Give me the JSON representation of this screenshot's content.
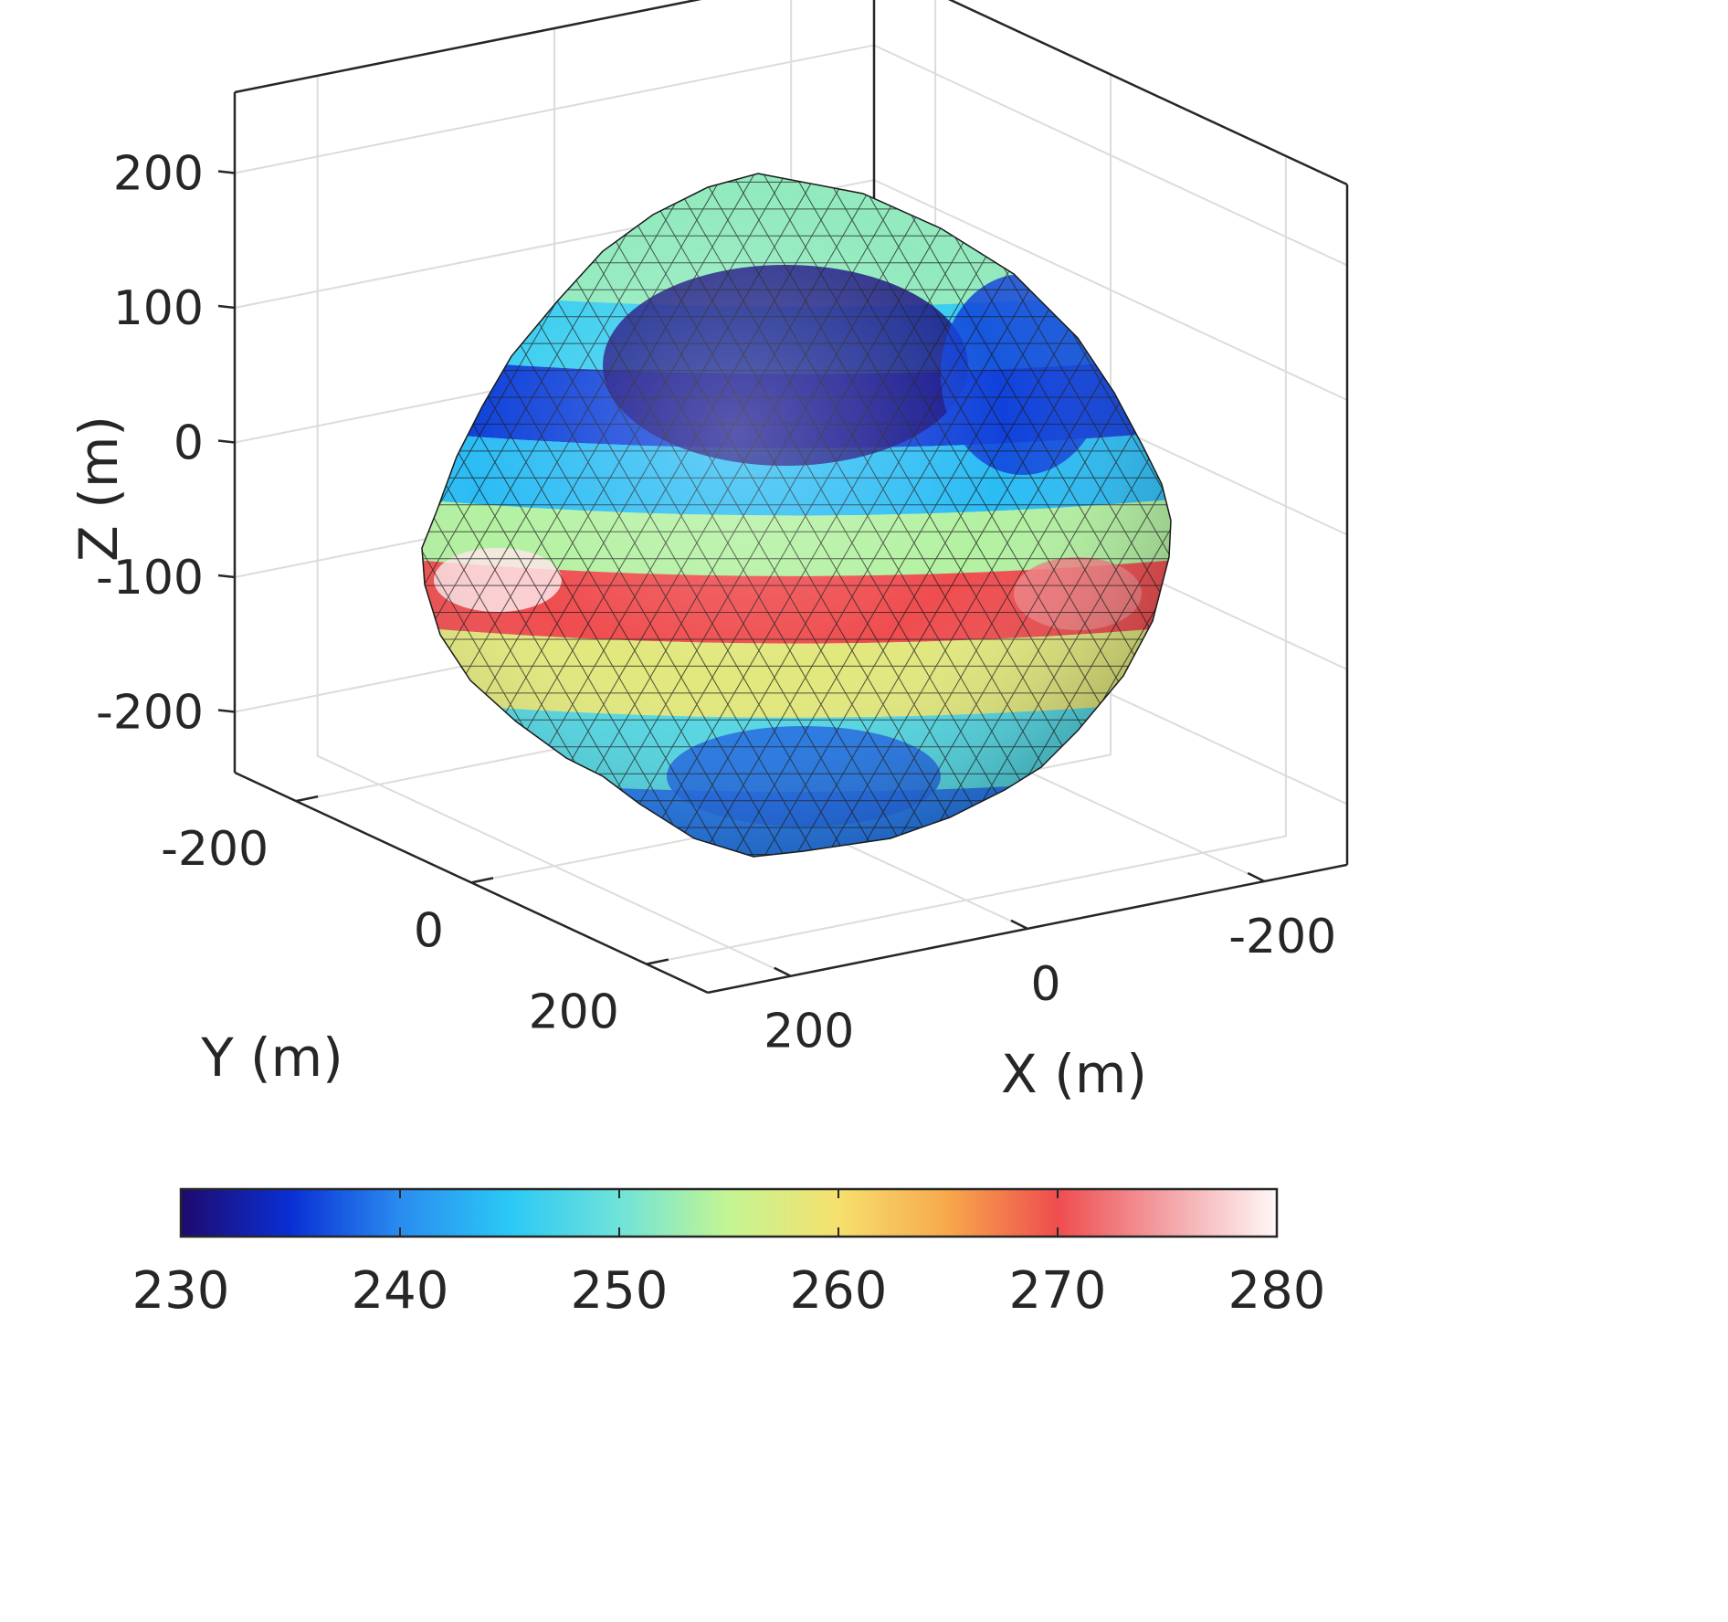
{
  "chart_data": {
    "type": "3d-surface",
    "title": "",
    "xlabel": "X (m)",
    "ylabel": "Y (m)",
    "zlabel": "Z (m)",
    "xticks": [
      {
        "value": -200,
        "label": "-200"
      },
      {
        "value": 0,
        "label": "0"
      },
      {
        "value": 200,
        "label": "200"
      }
    ],
    "yticks": [
      {
        "value": -200,
        "label": "-200"
      },
      {
        "value": 0,
        "label": "0"
      },
      {
        "value": 200,
        "label": "200"
      }
    ],
    "zticks": [
      {
        "value": -200,
        "label": "-200"
      },
      {
        "value": -100,
        "label": "-100"
      },
      {
        "value": 0,
        "label": "0"
      },
      {
        "value": 100,
        "label": "100"
      },
      {
        "value": 200,
        "label": "200"
      }
    ],
    "xlim": [
      -270,
      270
    ],
    "ylim": [
      -270,
      270
    ],
    "zlim": [
      -245,
      260
    ],
    "grid": true,
    "colorbar": {
      "location": "bottom",
      "range": [
        230,
        280
      ],
      "ticks": [
        {
          "value": 230,
          "label": "230"
        },
        {
          "value": 240,
          "label": "240"
        },
        {
          "value": 250,
          "label": "250"
        },
        {
          "value": 260,
          "label": "260"
        },
        {
          "value": 270,
          "label": "270"
        },
        {
          "value": 280,
          "label": "280"
        }
      ],
      "colormap": [
        "#1e0a6e",
        "#0a2fd4",
        "#2a8cf0",
        "#2bc8f5",
        "#6fe3d9",
        "#c4f593",
        "#f6e06e",
        "#f7a84b",
        "#ef4d4f",
        "#f3a3a6",
        "#fff7f7"
      ]
    },
    "shape": {
      "description_values": "triangulated surface of a near-spherical body, color = value on colorbar scale",
      "bands_by_z": [
        {
          "z": 200,
          "value": 252
        },
        {
          "z": 150,
          "value": 246
        },
        {
          "z": 100,
          "value": 236
        },
        {
          "z": 40,
          "value": 244
        },
        {
          "z": 0,
          "value": 254
        },
        {
          "z": -50,
          "value": 270
        },
        {
          "z": -100,
          "value": 258
        },
        {
          "z": -160,
          "value": 248
        },
        {
          "z": -210,
          "value": 239
        }
      ]
    }
  }
}
